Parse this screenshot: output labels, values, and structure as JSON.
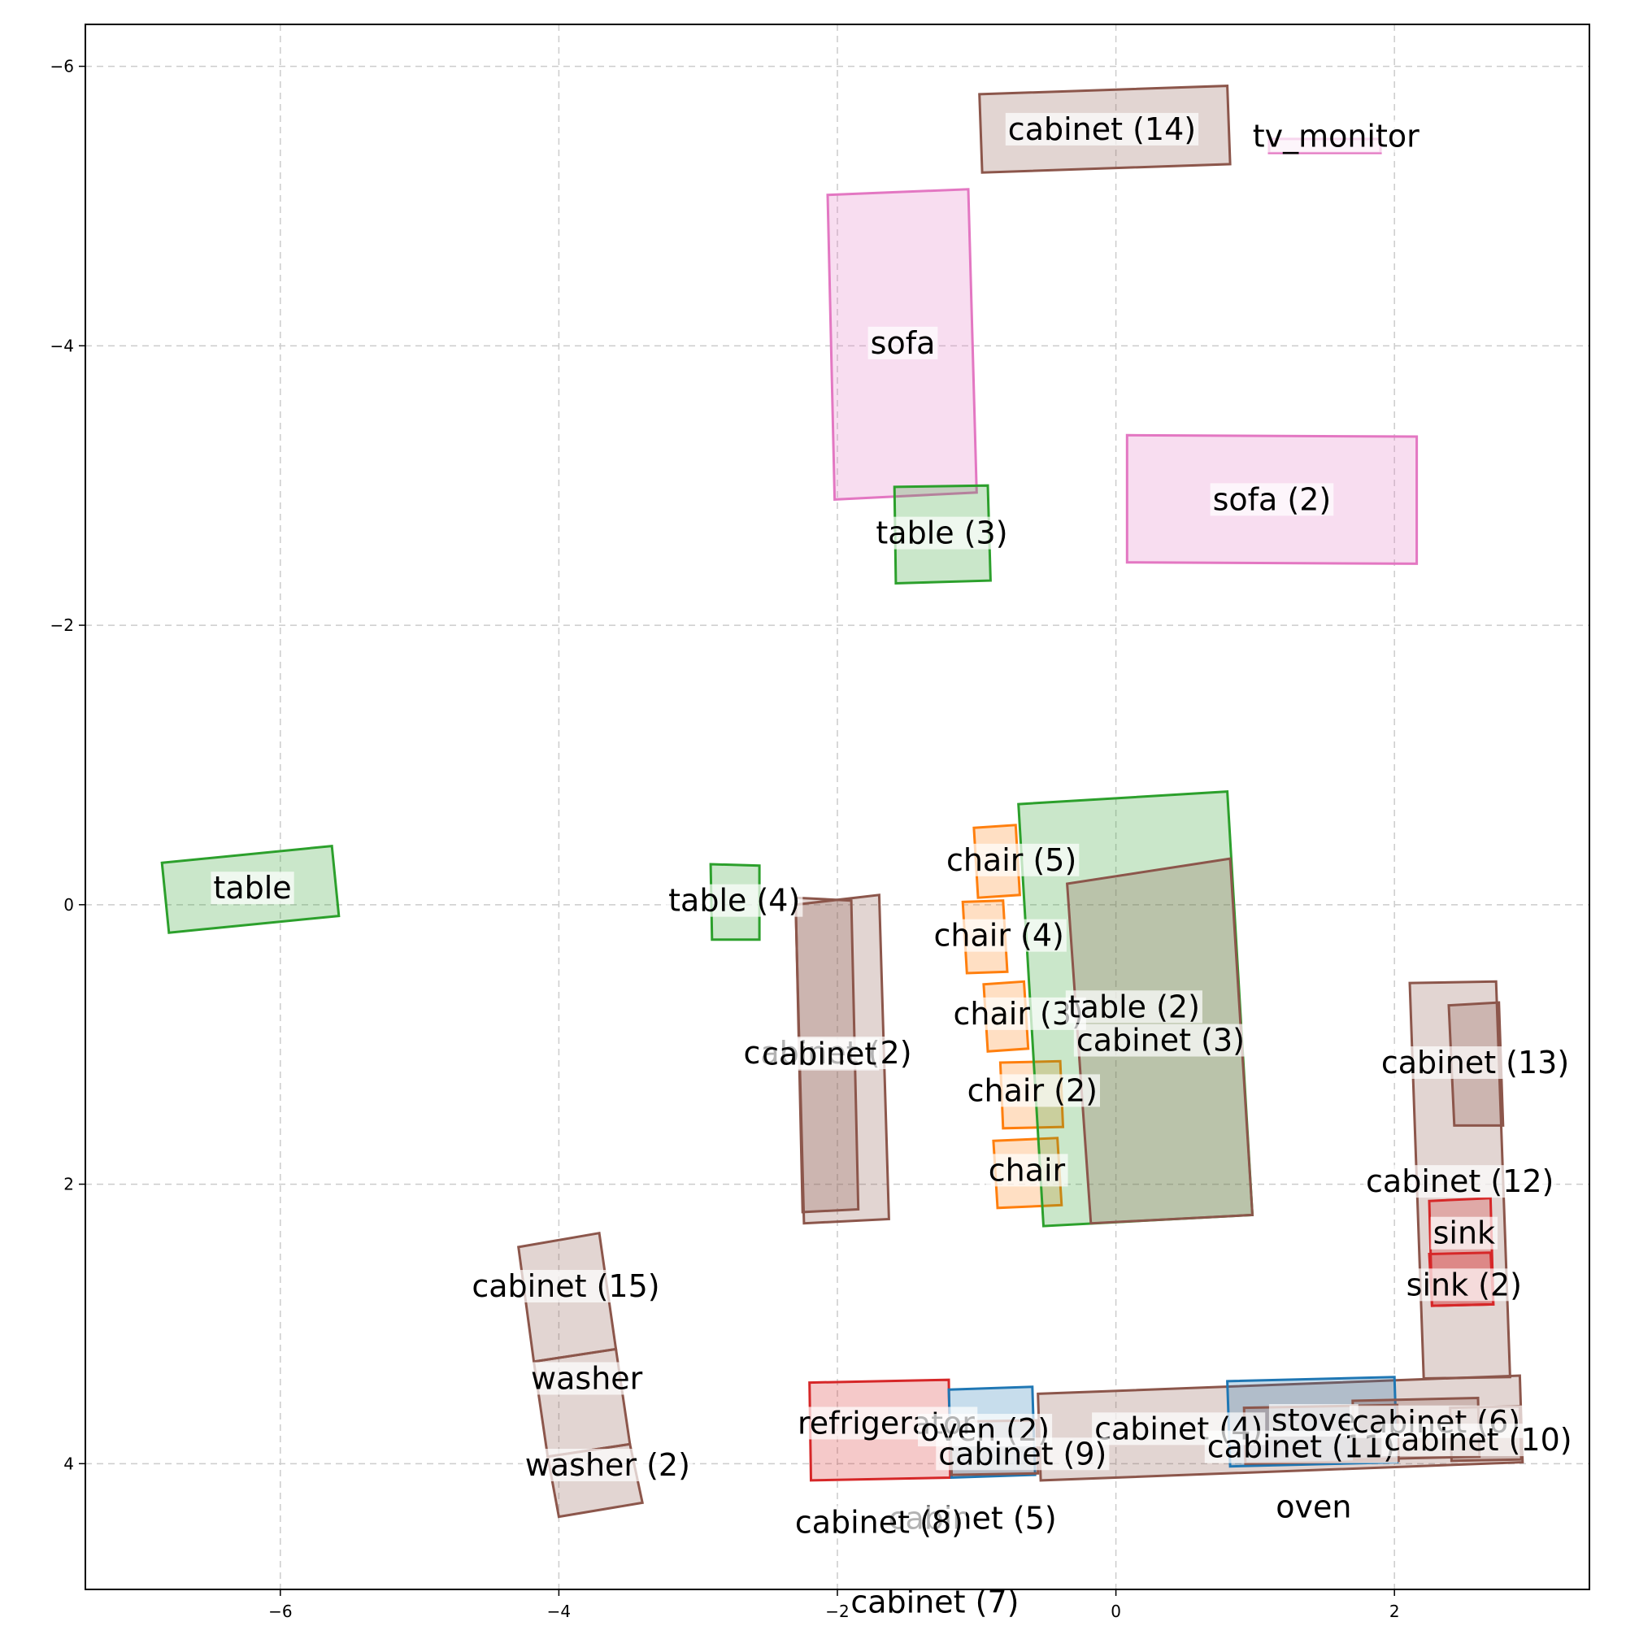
{
  "chart_data": {
    "type": "floorplan",
    "xlim": [
      -7.4,
      3.4
    ],
    "ylim": [
      4.9,
      -6.3
    ],
    "grid": true,
    "x_ticks": [
      -6,
      -4,
      -2,
      0,
      2
    ],
    "y_ticks": [
      -6,
      -4,
      -2,
      0,
      2,
      4
    ],
    "x_tick_labels": [
      "−6",
      "−4",
      "−2",
      "0",
      "2"
    ],
    "y_tick_labels": [
      "−6",
      "−4",
      "−2",
      "0",
      "2",
      "4"
    ],
    "category_colors": {
      "cabinet": "#8c564b",
      "table": "#2ca02c",
      "sofa": "#e377c2",
      "chair": "#ff7f0e",
      "refrigerator": "#d62728",
      "sink": "#d62728",
      "oven": "#1f77b4",
      "stove": "#1f77b4",
      "tv_monitor": "#e377c2",
      "washer": "#8c564b"
    },
    "objects": [
      {
        "label": "table",
        "category": "table",
        "corners": [
          [
            -6.85,
            -0.3
          ],
          [
            -5.63,
            -0.42
          ],
          [
            -5.58,
            0.08
          ],
          [
            -6.8,
            0.2
          ]
        ],
        "label_at": [
          -6.2,
          -0.12
        ]
      },
      {
        "label": "table (4)",
        "category": "table",
        "corners": [
          [
            -2.91,
            -0.29
          ],
          [
            -2.56,
            -0.28
          ],
          [
            -2.56,
            0.25
          ],
          [
            -2.9,
            0.25
          ]
        ],
        "label_at": [
          -2.74,
          -0.03
        ]
      },
      {
        "label": "cabinet (2)",
        "category": "cabinet",
        "corners": [
          [
            -2.3,
            0.0
          ],
          [
            -1.7,
            -0.07
          ],
          [
            -1.63,
            2.25
          ],
          [
            -2.24,
            2.28
          ]
        ],
        "label_at": [
          -2.07,
          1.06
        ]
      },
      {
        "label": "cabinet",
        "category": "cabinet",
        "corners": [
          [
            -2.3,
            -0.05
          ],
          [
            -1.9,
            -0.03
          ],
          [
            -1.85,
            2.18
          ],
          [
            -2.25,
            2.2
          ]
        ],
        "label_at": [
          -2.13,
          1.07
        ]
      },
      {
        "label": "chair (5)",
        "category": "chair",
        "corners": [
          [
            -1.02,
            -0.55
          ],
          [
            -0.72,
            -0.57
          ],
          [
            -0.69,
            -0.07
          ],
          [
            -0.99,
            -0.05
          ]
        ],
        "label_at": [
          -0.75,
          -0.32
        ]
      },
      {
        "label": "chair (4)",
        "category": "chair",
        "corners": [
          [
            -1.1,
            -0.02
          ],
          [
            -0.81,
            -0.03
          ],
          [
            -0.78,
            0.48
          ],
          [
            -1.07,
            0.49
          ]
        ],
        "label_at": [
          -0.84,
          0.22
        ]
      },
      {
        "label": "chair (3)",
        "category": "chair",
        "corners": [
          [
            -0.95,
            0.57
          ],
          [
            -0.66,
            0.55
          ],
          [
            -0.63,
            1.03
          ],
          [
            -0.92,
            1.05
          ]
        ],
        "label_at": [
          -0.7,
          0.78
        ]
      },
      {
        "label": "chair (2)",
        "category": "chair",
        "corners": [
          [
            -0.83,
            1.13
          ],
          [
            -0.4,
            1.12
          ],
          [
            -0.38,
            1.59
          ],
          [
            -0.81,
            1.6
          ]
        ],
        "label_at": [
          -0.6,
          1.33
        ]
      },
      {
        "label": "chair",
        "category": "chair",
        "corners": [
          [
            -0.88,
            1.69
          ],
          [
            -0.42,
            1.67
          ],
          [
            -0.39,
            2.15
          ],
          [
            -0.85,
            2.17
          ]
        ],
        "label_at": [
          -0.64,
          1.9
        ]
      },
      {
        "label": "table (2)",
        "category": "table",
        "corners": [
          [
            -0.7,
            -0.72
          ],
          [
            0.8,
            -0.81
          ],
          [
            0.98,
            2.22
          ],
          [
            -0.52,
            2.3
          ]
        ],
        "label_at": [
          0.13,
          0.73
        ]
      },
      {
        "label": "cabinet (3)",
        "category": "cabinet",
        "corners": [
          [
            -0.35,
            -0.15
          ],
          [
            0.82,
            -0.33
          ],
          [
            0.98,
            2.22
          ],
          [
            -0.18,
            2.28
          ]
        ],
        "label_at": [
          0.32,
          0.97
        ]
      },
      {
        "label": "sofa",
        "category": "sofa",
        "corners": [
          [
            -2.07,
            -5.08
          ],
          [
            -1.06,
            -5.12
          ],
          [
            -1.0,
            -2.95
          ],
          [
            -2.02,
            -2.9
          ]
        ],
        "label_at": [
          -1.53,
          -4.02
        ]
      },
      {
        "label": "table (3)",
        "category": "table",
        "corners": [
          [
            -1.59,
            -2.99
          ],
          [
            -0.92,
            -3.0
          ],
          [
            -0.9,
            -2.32
          ],
          [
            -1.58,
            -2.3
          ]
        ],
        "label_at": [
          -1.25,
          -2.66
        ]
      },
      {
        "label": "sofa (2)",
        "category": "sofa",
        "corners": [
          [
            0.08,
            -3.36
          ],
          [
            2.16,
            -3.35
          ],
          [
            2.16,
            -2.44
          ],
          [
            0.08,
            -2.45
          ]
        ],
        "label_at": [
          1.12,
          -2.9
        ]
      },
      {
        "label": "cabinet (14)",
        "category": "cabinet",
        "corners": [
          [
            -0.98,
            -5.8
          ],
          [
            0.8,
            -5.86
          ],
          [
            0.82,
            -5.3
          ],
          [
            -0.96,
            -5.24
          ]
        ],
        "label_at": [
          -0.1,
          -5.55
        ]
      },
      {
        "label": "tv_monitor",
        "category": "tv_monitor",
        "corners": [
          [
            1.1,
            -5.48
          ],
          [
            1.9,
            -5.48
          ],
          [
            1.9,
            -5.38
          ],
          [
            1.1,
            -5.38
          ]
        ],
        "label_at": [
          1.58,
          -5.5
        ]
      },
      {
        "label": "cabinet (13)",
        "category": "cabinet",
        "corners": [
          [
            2.11,
            0.56
          ],
          [
            2.73,
            0.55
          ],
          [
            2.83,
            3.38
          ],
          [
            2.21,
            3.39
          ]
        ],
        "label_at": [
          2.58,
          1.13
        ]
      },
      {
        "label": "cabinet (12)",
        "category": "cabinet",
        "corners": [
          [
            2.39,
            0.72
          ],
          [
            2.75,
            0.7
          ],
          [
            2.78,
            1.58
          ],
          [
            2.43,
            1.58
          ]
        ],
        "label_at": [
          2.47,
          1.98
        ]
      },
      {
        "label": "sink",
        "category": "sink",
        "corners": [
          [
            2.25,
            2.12
          ],
          [
            2.69,
            2.1
          ],
          [
            2.71,
            2.86
          ],
          [
            2.27,
            2.87
          ]
        ],
        "label_at": [
          2.5,
          2.35
        ]
      },
      {
        "label": "sink (2)",
        "category": "sink",
        "corners": [
          [
            2.25,
            2.5
          ],
          [
            2.69,
            2.49
          ],
          [
            2.71,
            2.86
          ],
          [
            2.27,
            2.87
          ]
        ],
        "label_at": [
          2.5,
          2.72
        ]
      },
      {
        "label": "cabinet (15)",
        "category": "cabinet",
        "corners": [
          [
            -4.29,
            2.45
          ],
          [
            -3.71,
            2.35
          ],
          [
            -3.59,
            3.18
          ],
          [
            -4.18,
            3.27
          ]
        ],
        "label_at": [
          -3.95,
          2.73
        ]
      },
      {
        "label": "washer",
        "category": "washer",
        "corners": [
          [
            -4.18,
            3.27
          ],
          [
            -3.59,
            3.18
          ],
          [
            -3.49,
            3.86
          ],
          [
            -4.08,
            3.95
          ]
        ],
        "label_at": [
          -3.8,
          3.39
        ]
      },
      {
        "label": "washer (2)",
        "category": "washer",
        "corners": [
          [
            -4.08,
            3.95
          ],
          [
            -3.49,
            3.86
          ],
          [
            -3.4,
            4.28
          ],
          [
            -4.0,
            4.38
          ]
        ],
        "label_at": [
          -3.65,
          4.01
        ]
      },
      {
        "label": "refrigerator",
        "category": "refrigerator",
        "corners": [
          [
            -2.2,
            3.42
          ],
          [
            -1.2,
            3.4
          ],
          [
            -1.19,
            4.1
          ],
          [
            -2.19,
            4.12
          ]
        ],
        "label_at": [
          -1.65,
          3.71
        ]
      },
      {
        "label": "oven (2)",
        "category": "oven",
        "corners": [
          [
            -1.2,
            3.47
          ],
          [
            -0.6,
            3.45
          ],
          [
            -0.58,
            4.08
          ],
          [
            -1.18,
            4.1
          ]
        ],
        "label_at": [
          -0.94,
          3.76
        ]
      },
      {
        "label": "cabinet (4)",
        "category": "cabinet",
        "corners": [
          [
            -0.56,
            3.5
          ],
          [
            2.9,
            3.37
          ],
          [
            2.92,
            3.99
          ],
          [
            -0.54,
            4.12
          ]
        ],
        "label_at": [
          0.45,
          3.75
        ]
      },
      {
        "label": "cabinet (9)",
        "category": "cabinet",
        "corners": [
          [
            -1.19,
            3.7
          ],
          [
            -0.57,
            3.69
          ],
          [
            -0.56,
            4.07
          ],
          [
            -1.18,
            4.08
          ]
        ],
        "label_at": [
          -0.67,
          3.93
        ]
      },
      {
        "label": "stove",
        "category": "stove",
        "corners": [
          [
            0.8,
            3.41
          ],
          [
            2.0,
            3.38
          ],
          [
            2.02,
            3.99
          ],
          [
            0.82,
            4.02
          ]
        ],
        "label_at": [
          1.42,
          3.69
        ]
      },
      {
        "label": "cabinet (11)",
        "category": "cabinet",
        "corners": [
          [
            0.92,
            3.6
          ],
          [
            2.02,
            3.58
          ],
          [
            2.03,
            3.98
          ],
          [
            0.93,
            4.0
          ]
        ],
        "label_at": [
          1.33,
          3.88
        ]
      },
      {
        "label": "cabinet (6)",
        "category": "cabinet",
        "corners": [
          [
            1.7,
            3.55
          ],
          [
            2.6,
            3.53
          ],
          [
            2.61,
            3.95
          ],
          [
            1.71,
            3.97
          ]
        ],
        "label_at": [
          2.3,
          3.7
        ]
      },
      {
        "label": "cabinet (10)",
        "category": "cabinet",
        "corners": [
          [
            2.4,
            3.6
          ],
          [
            2.9,
            3.59
          ],
          [
            2.91,
            3.97
          ],
          [
            2.41,
            3.98
          ]
        ],
        "label_at": [
          2.6,
          3.83
        ]
      },
      {
        "label": "oven",
        "category": "oven",
        "corners": [],
        "label_at": [
          1.42,
          4.31
        ]
      },
      {
        "label": "cabinet (5)",
        "category": "cabinet",
        "corners": [],
        "label_at": [
          -1.03,
          4.39
        ]
      },
      {
        "label": "cabinet (8)",
        "category": "cabinet",
        "corners": [],
        "label_at": [
          -1.7,
          4.42
        ]
      },
      {
        "label": "cabinet (7)",
        "category": "cabinet",
        "corners": [],
        "label_at": [
          -1.3,
          4.99
        ]
      }
    ]
  }
}
